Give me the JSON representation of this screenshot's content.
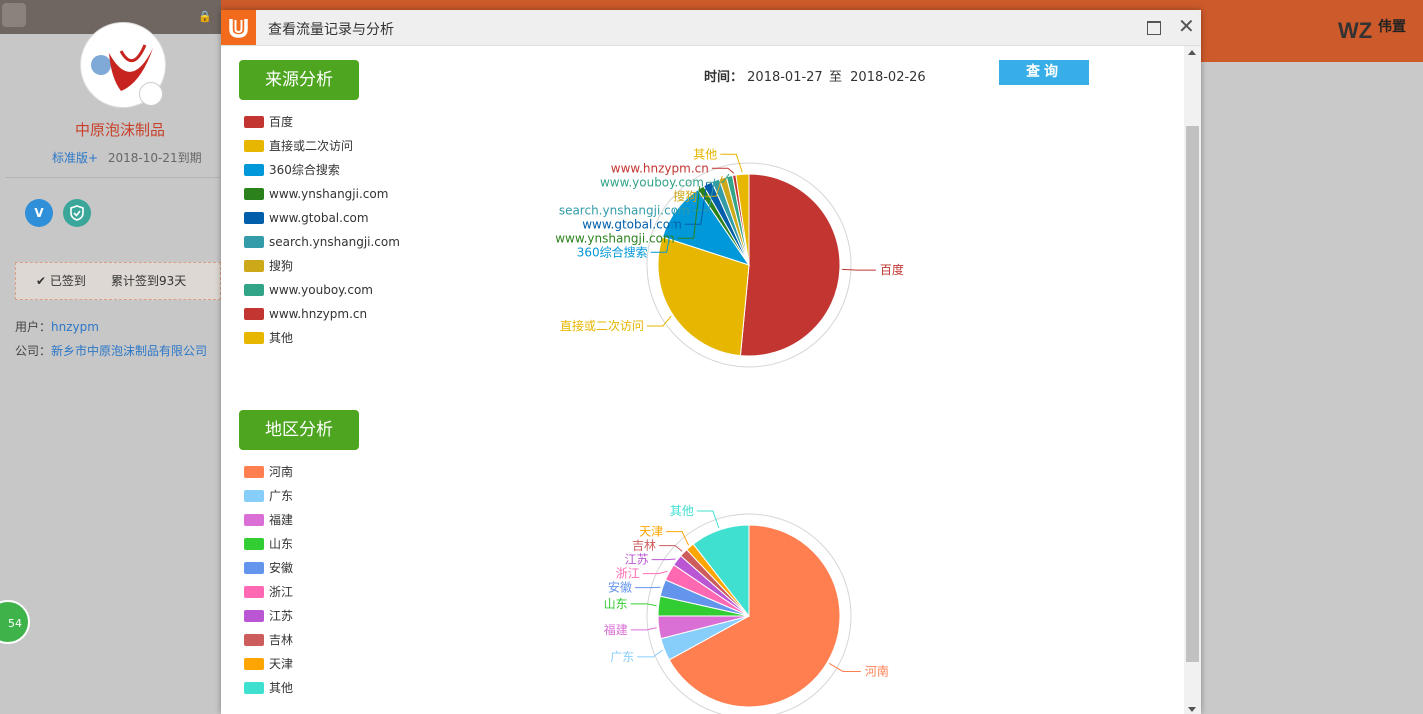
{
  "background": {
    "company_name": "中原泡沫制品",
    "plan": "标准版+",
    "expiry": "2018-10-21到期",
    "v_badge": "V",
    "checked_in": "已签到",
    "total_checkins": "累计签到93天",
    "user_label": "用户：",
    "user_value": "hnzypm",
    "company_label": "公司：",
    "company_value": "新乡市中原泡沫制品有限公司",
    "float_badge": "54",
    "brand_logo": "WZ",
    "brand_cn": "伟置"
  },
  "dialog": {
    "title": "查看流量记录与分析",
    "time_label": "时间：",
    "start_date": "2018-01-27",
    "to_label": "至",
    "end_date": "2018-02-26",
    "query_button": "查询"
  },
  "source_section": {
    "title": "来源分析"
  },
  "region_section": {
    "title": "地区分析"
  },
  "chart_data": [
    {
      "type": "pie",
      "title": "来源分析",
      "categories": [
        "百度",
        "直接或二次访问",
        "360综合搜索",
        "www.ynshangji.com",
        "www.gtobal.com",
        "search.ynshangji.com",
        "搜狗",
        "www.youboy.com",
        "www.hnzypm.cn",
        "其他"
      ],
      "values": [
        51.5,
        28.5,
        10.5,
        1.2,
        1.6,
        1.4,
        1.3,
        1.1,
        0.6,
        2.3
      ],
      "colors": [
        "#c23531",
        "#e6b600",
        "#0098d9",
        "#2b821d",
        "#005eaa",
        "#339ca8",
        "#cda819",
        "#32a487",
        "#c23531",
        "#e6b600"
      ]
    },
    {
      "type": "pie",
      "title": "地区分析",
      "categories": [
        "河南",
        "广东",
        "福建",
        "山东",
        "安徽",
        "浙江",
        "江苏",
        "吉林",
        "天津",
        "其他"
      ],
      "values": [
        67.0,
        4.0,
        4.0,
        3.5,
        3.0,
        3.0,
        2.0,
        1.5,
        1.5,
        10.5
      ],
      "colors": [
        "#ff7f50",
        "#87cefa",
        "#da70d6",
        "#32cd32",
        "#6495ed",
        "#ff69b4",
        "#ba55d3",
        "#cd5c5c",
        "#ffa500",
        "#40e0d0"
      ]
    }
  ]
}
